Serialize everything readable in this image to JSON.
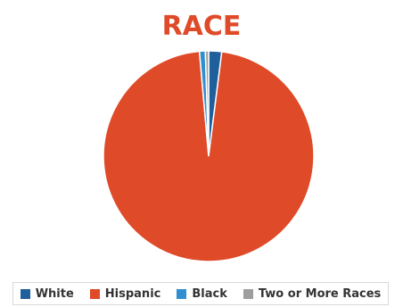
{
  "chart_data": {
    "type": "pie",
    "title": "RACE",
    "series": [
      {
        "name": "White",
        "value": 2.0,
        "color": "#1f5f9b"
      },
      {
        "name": "Hispanic",
        "value": 96.6,
        "color": "#df4a28"
      },
      {
        "name": "Black",
        "value": 0.9,
        "color": "#2f8fd0"
      },
      {
        "name": "Two or More Races",
        "value": 0.5,
        "color": "#9e9e9e"
      }
    ],
    "legend_position": "bottom"
  }
}
